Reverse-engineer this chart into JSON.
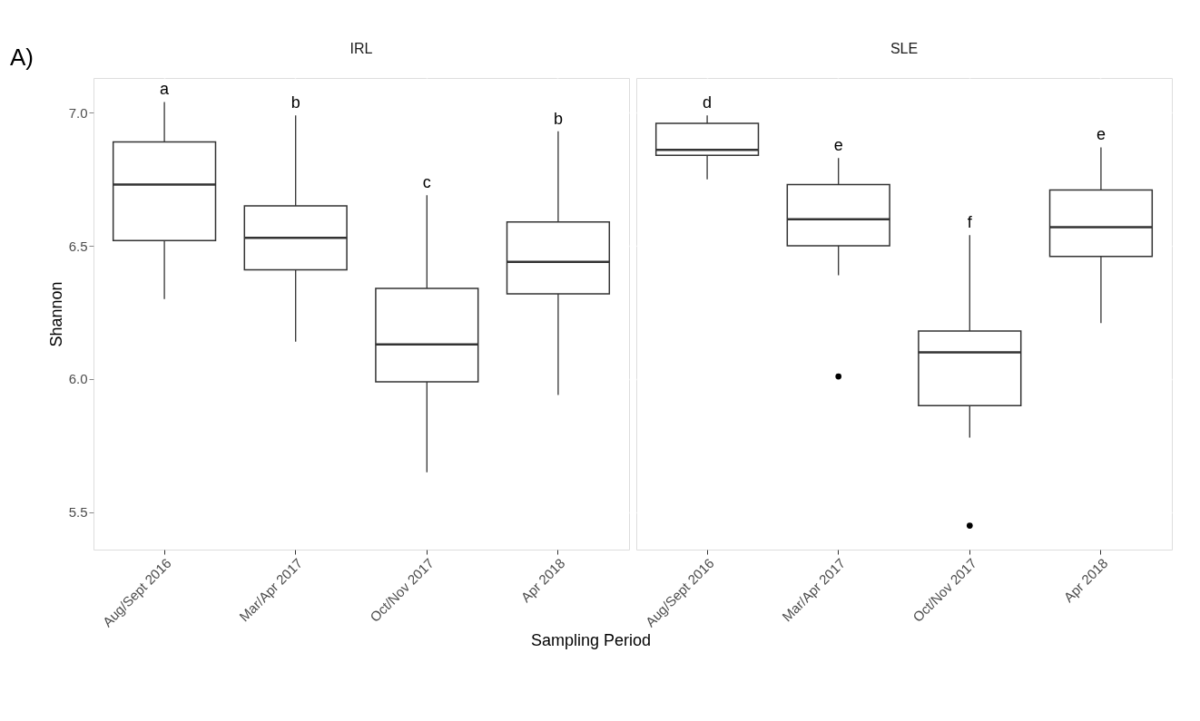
{
  "chart_data": [
    {
      "type": "box",
      "title": "IRL",
      "ylabel": "Shannon",
      "xlabel": "Sampling Period",
      "categories": [
        "Aug/Sept 2016",
        "Mar/Apr 2017",
        "Oct/Nov 2017",
        "Apr 2018"
      ],
      "boxes": [
        {
          "low": 6.3,
          "q1": 6.52,
          "median": 6.73,
          "q3": 6.89,
          "high": 7.04
        },
        {
          "low": 6.14,
          "q1": 6.41,
          "median": 6.53,
          "q3": 6.65,
          "high": 6.99
        },
        {
          "low": 5.65,
          "q1": 5.99,
          "median": 6.13,
          "q3": 6.34,
          "high": 6.69
        },
        {
          "low": 5.94,
          "q1": 6.32,
          "median": 6.44,
          "q3": 6.59,
          "high": 6.93
        }
      ],
      "ylim": [
        5.36,
        7.13
      ],
      "yticks": [
        {
          "value": 5.5,
          "label": "5.5"
        },
        {
          "value": 6,
          "label": "6.0"
        },
        {
          "value": 6.5,
          "label": "6.5"
        },
        {
          "value": 7,
          "label": "7.0"
        }
      ],
      "grid": true,
      "annotations": [
        "A)",
        "a",
        "b",
        "c",
        "b"
      ]
    },
    {
      "type": "box",
      "title": "SLE",
      "categories": [
        "Aug/Sept 2016",
        "Mar/Apr 2017",
        "Oct/Nov 2017",
        "Apr 2018"
      ],
      "boxes": [
        {
          "low": 6.75,
          "q1": 6.84,
          "median": 6.86,
          "q3": 6.96,
          "high": 6.99
        },
        {
          "low": 6.39,
          "q1": 6.5,
          "median": 6.6,
          "q3": 6.73,
          "high": 6.83,
          "outliers": [
            6.01
          ]
        },
        {
          "low": 5.78,
          "q1": 5.9,
          "median": 6.1,
          "q3": 6.18,
          "high": 6.54,
          "outliers": [
            5.45
          ]
        },
        {
          "low": 6.21,
          "q1": 6.46,
          "median": 6.57,
          "q3": 6.71,
          "high": 6.87
        }
      ],
      "ylim": [
        5.36,
        7.13
      ],
      "yticks": [
        5.5,
        6,
        6.5,
        7
      ],
      "grid": true,
      "tick_labels": "x",
      "annotations": [
        "d",
        "e",
        "f",
        "e"
      ]
    }
  ]
}
